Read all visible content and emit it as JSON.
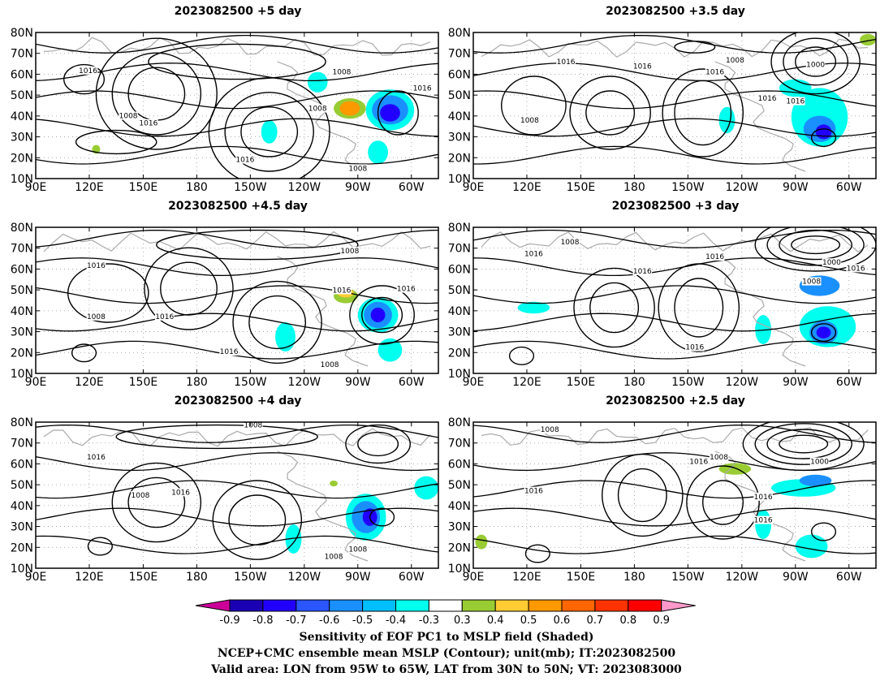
{
  "panels": [
    {
      "title": "2023082500 +5 day"
    },
    {
      "title": "2023082500 +3.5 day"
    },
    {
      "title": "2023082500 +4.5 day"
    },
    {
      "title": "2023082500 +3 day"
    },
    {
      "title": "2023082500 +4 day"
    },
    {
      "title": "2023082500 +2.5 day"
    }
  ],
  "axes": {
    "lat_labels": [
      "80N",
      "70N",
      "60N",
      "50N",
      "40N",
      "30N",
      "20N",
      "10N"
    ],
    "lon_labels": [
      "90E",
      "120E",
      "150E",
      "180",
      "150W",
      "120W",
      "90W",
      "60W"
    ]
  },
  "contour_labels": [
    "1016",
    "1008",
    "1000"
  ],
  "colorbar": {
    "tick_labels": [
      "-0.9",
      "-0.8",
      "-0.7",
      "-0.6",
      "-0.5",
      "-0.4",
      "-0.3",
      "0.3",
      "0.4",
      "0.5",
      "0.6",
      "0.7",
      "0.8",
      "0.9"
    ],
    "colors": [
      "#cc0099",
      "#1a00b3",
      "#2200ff",
      "#2a55ff",
      "#1a90ff",
      "#00bfff",
      "#00ffee",
      "#ffffff",
      "#99cc33",
      "#ffcc33",
      "#ff9900",
      "#ff6600",
      "#ff3300",
      "#ff0000",
      "#ff99cc"
    ]
  },
  "caption": {
    "line1": "Sensitivity of EOF PC1 to MSLP field (Shaded)",
    "line2": "NCEP+CMC ensemble mean MSLP (Contour); unit(mb); IT:2023082500",
    "line3": "Valid area: LON from 95W to 65W, LAT from 30N to 50N; VT: 2023083000"
  }
}
